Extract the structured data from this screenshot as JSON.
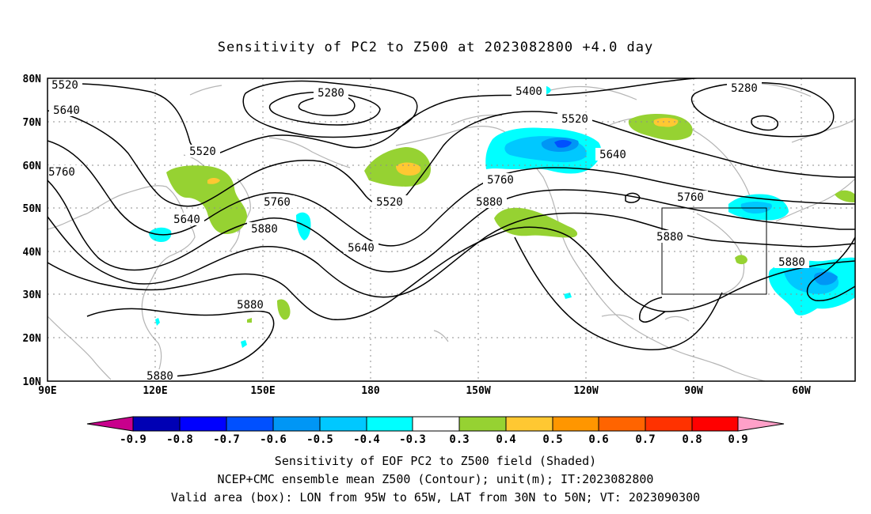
{
  "title": "Sensitivity of PC2 to Z500 at 2023082800 +4.0 day",
  "lat_labels": [
    "80N",
    "70N",
    "60N",
    "50N",
    "40N",
    "30N",
    "20N",
    "10N"
  ],
  "lon_labels": [
    "90E",
    "120E",
    "150E",
    "180",
    "150W",
    "120W",
    "90W",
    "60W"
  ],
  "contour_labels": [
    {
      "id": "c5520-w",
      "text": "5520"
    },
    {
      "id": "c5640-w",
      "text": "5640"
    },
    {
      "id": "c5760-w",
      "text": "5760"
    },
    {
      "id": "c5280-a",
      "text": "5280"
    },
    {
      "id": "c5520-b",
      "text": "5520"
    },
    {
      "id": "c5640-b",
      "text": "5640"
    },
    {
      "id": "c5760-b",
      "text": "5760"
    },
    {
      "id": "c5880-b",
      "text": "5880"
    },
    {
      "id": "c5520-c",
      "text": "5520"
    },
    {
      "id": "c5640-c",
      "text": "5640"
    },
    {
      "id": "c5400-d",
      "text": "5400"
    },
    {
      "id": "c5520-d",
      "text": "5520"
    },
    {
      "id": "c5760-d",
      "text": "5760"
    },
    {
      "id": "c5880-d",
      "text": "5880"
    },
    {
      "id": "c5640-e",
      "text": "5640"
    },
    {
      "id": "c5280-f",
      "text": "5280"
    },
    {
      "id": "c5760-g",
      "text": "5760"
    },
    {
      "id": "c5880-g",
      "text": "5880"
    },
    {
      "id": "c5880-h",
      "text": "5880"
    },
    {
      "id": "c5880-i",
      "text": "5880"
    },
    {
      "id": "c5880-j",
      "text": "5880"
    }
  ],
  "colorbar": {
    "labels": [
      "-0.9",
      "-0.8",
      "-0.7",
      "-0.6",
      "-0.5",
      "-0.4",
      "-0.3",
      "0.3",
      "0.4",
      "0.5",
      "0.6",
      "0.7",
      "0.8",
      "0.9"
    ],
    "colors": [
      "#c8008c",
      "#0000b4",
      "#0000ff",
      "#0050ff",
      "#0096f5",
      "#00c8ff",
      "#00ffff",
      "#ffffff",
      "#96d232",
      "#ffc832",
      "#ff9600",
      "#ff6400",
      "#ff3200",
      "#ff0000",
      "#ffa0c8"
    ]
  },
  "shading_colors": {
    "cyan": "#00ffff",
    "light_blue": "#00c8ff",
    "blue": "#0096f5",
    "dark_blue": "#0050ff",
    "green": "#96d232",
    "yellow": "#ffc832"
  },
  "valid_box": {
    "lon_from": "95W",
    "lon_to": "65W",
    "lat_from": "30N",
    "lat_to": "50N"
  },
  "captions": [
    "Sensitivity of EOF PC2 to Z500 field (Shaded)",
    "NCEP+CMC ensemble mean Z500 (Contour); unit(m); IT:2023082800",
    "Valid area (box): LON from 95W to 65W, LAT from 30N to 50N; VT: 2023090300"
  ]
}
